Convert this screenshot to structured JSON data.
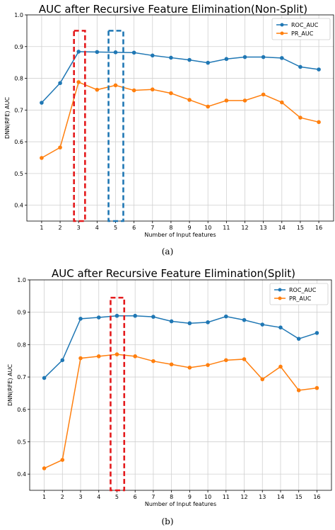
{
  "chart_data": [
    {
      "type": "line",
      "caption": "(a)",
      "title": "AUC after Recursive Feature Elimination(Non-Split)",
      "xlabel": "Number of Input features",
      "ylabel": "DNN(RFE) AUC",
      "x": [
        1,
        2,
        3,
        4,
        5,
        6,
        7,
        8,
        9,
        10,
        11,
        12,
        13,
        14,
        15,
        16
      ],
      "ylim": [
        0.35,
        1.0
      ],
      "yticks": [
        "0.4",
        "0.5",
        "0.6",
        "0.7",
        "0.8",
        "0.9",
        "1.0"
      ],
      "grid": true,
      "legend_position": "top-right",
      "series": [
        {
          "name": "ROC_AUC",
          "color": "#1f77b4",
          "values": [
            0.723,
            0.785,
            0.884,
            0.883,
            0.882,
            0.881,
            0.872,
            0.865,
            0.858,
            0.849,
            0.861,
            0.867,
            0.867,
            0.864,
            0.836,
            0.828
          ]
        },
        {
          "name": "PR_AUC",
          "color": "#ff7f0e",
          "values": [
            0.549,
            0.582,
            0.788,
            0.764,
            0.778,
            0.762,
            0.765,
            0.753,
            0.732,
            0.711,
            0.73,
            0.73,
            0.749,
            0.724,
            0.676,
            0.662
          ]
        }
      ],
      "highlight_boxes": [
        {
          "x": [
            2.75,
            3.35
          ],
          "y": [
            0.35,
            0.95
          ],
          "color": "#e41a1c"
        },
        {
          "x": [
            4.62,
            5.42
          ],
          "y": [
            0.35,
            0.95
          ],
          "color": "#1f77b4"
        }
      ]
    },
    {
      "type": "line",
      "caption": "(b)",
      "title": "AUC after Recursive Feature Elimination(Split)",
      "xlabel": "Number of Input features",
      "ylabel": "DNN(RFE) AUC",
      "x": [
        1,
        2,
        3,
        4,
        5,
        6,
        7,
        8,
        9,
        10,
        11,
        12,
        13,
        14,
        15,
        16
      ],
      "ylim": [
        0.35,
        1.0
      ],
      "yticks": [
        "0.4",
        "0.5",
        "0.6",
        "0.7",
        "0.8",
        "0.9",
        "1.0"
      ],
      "grid": true,
      "legend_position": "top-right",
      "series": [
        {
          "name": "ROC_AUC",
          "color": "#1f77b4",
          "values": [
            0.697,
            0.752,
            0.88,
            0.884,
            0.889,
            0.889,
            0.886,
            0.872,
            0.866,
            0.869,
            0.887,
            0.876,
            0.862,
            0.853,
            0.818,
            0.836
          ]
        },
        {
          "name": "PR_AUC",
          "color": "#ff7f0e",
          "values": [
            0.418,
            0.444,
            0.758,
            0.764,
            0.77,
            0.764,
            0.749,
            0.739,
            0.729,
            0.737,
            0.752,
            0.755,
            0.693,
            0.732,
            0.659,
            0.666
          ]
        }
      ],
      "highlight_boxes": [
        {
          "x": [
            4.65,
            5.4
          ],
          "y": [
            0.35,
            0.945
          ],
          "color": "#e41a1c"
        }
      ]
    }
  ]
}
